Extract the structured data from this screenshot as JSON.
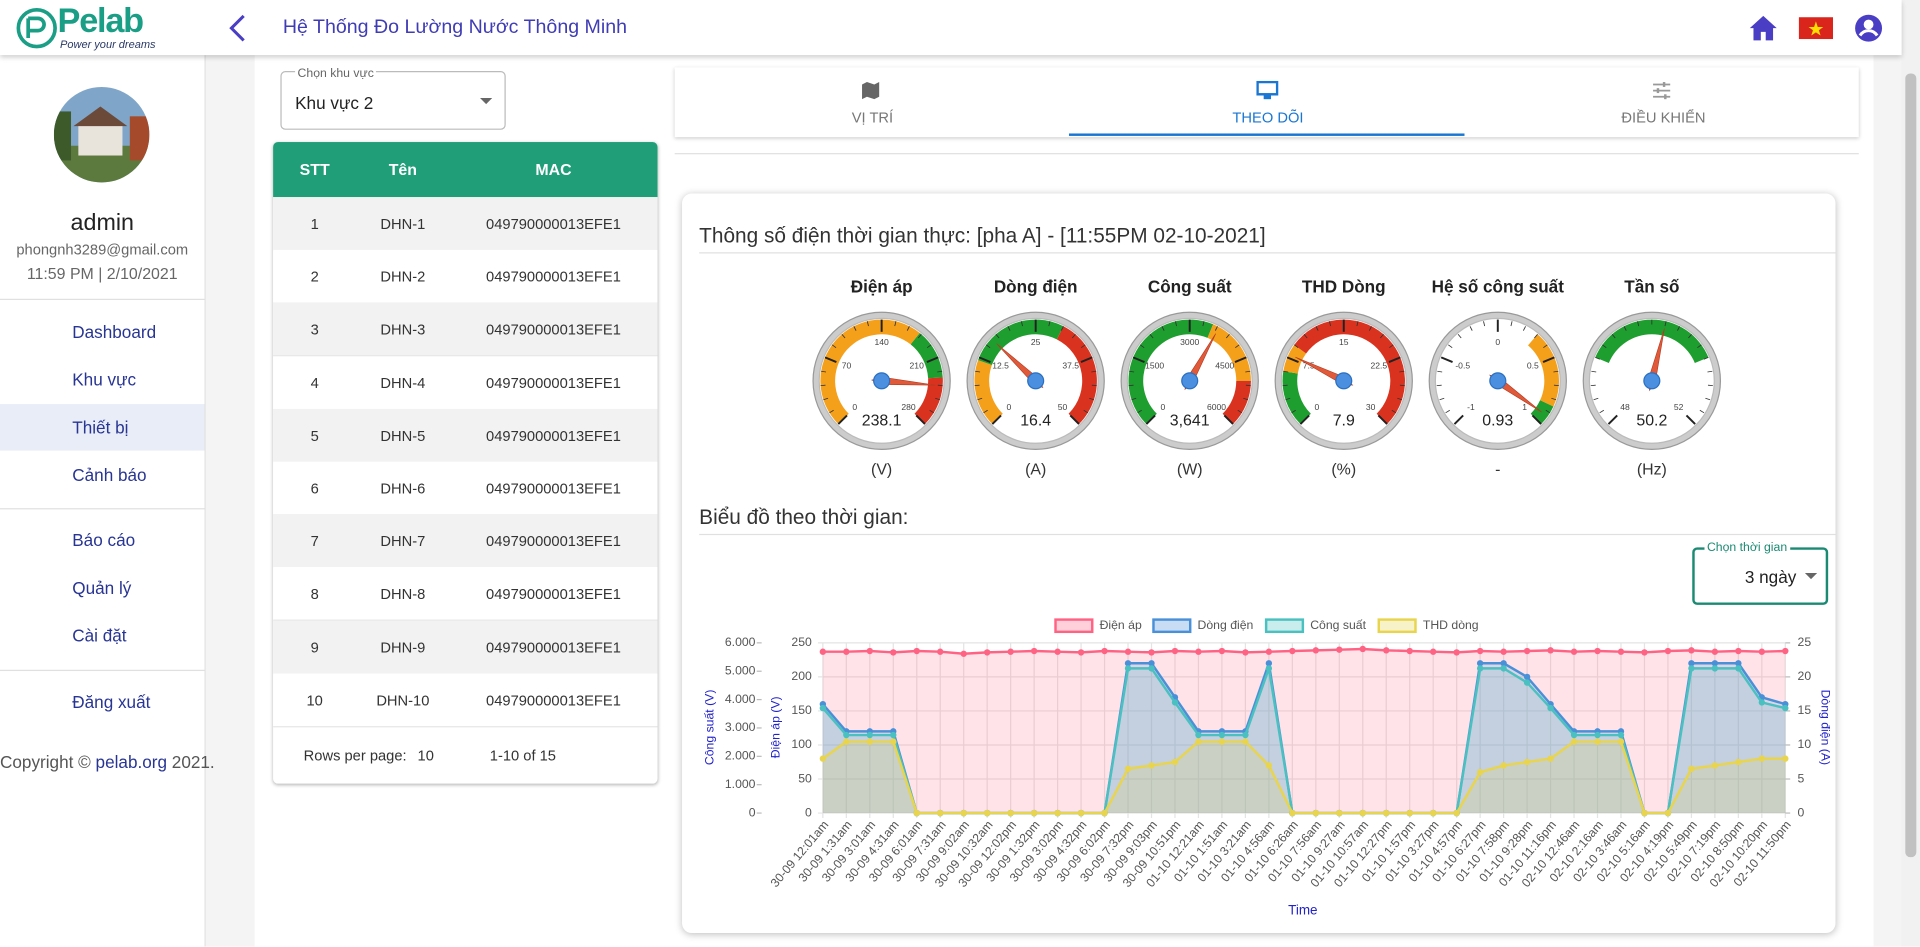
{
  "header": {
    "logo_title": "Pelab",
    "logo_tagline": "Power your dreams",
    "app_title": "Hệ Thống Đo Lường Nước Thông Minh"
  },
  "sidebar": {
    "user": {
      "name": "admin",
      "email": "phongnh3289@gmail.com",
      "datetime": "11:59 PM | 2/10/2021"
    },
    "menu": [
      "Dashboard",
      "Khu vực",
      "Thiết bị",
      "Cảnh báo",
      "Báo cáo",
      "Quản lý",
      "Cài đặt",
      "Đăng xuất"
    ],
    "active": 2,
    "copyright_prefix": "Copyright ©",
    "copyright_link": "pelab.org",
    "copyright_suffix": "2021."
  },
  "area_select": {
    "label": "Chọn khu vực",
    "value": "Khu vực 2"
  },
  "table": {
    "columns": [
      "STT",
      "Tên",
      "MAC"
    ],
    "rows": [
      [
        1,
        "DHN-1",
        "049790000013EFE1"
      ],
      [
        2,
        "DHN-2",
        "049790000013EFE1"
      ],
      [
        3,
        "DHN-3",
        "049790000013EFE1"
      ],
      [
        4,
        "DHN-4",
        "049790000013EFE1"
      ],
      [
        5,
        "DHN-5",
        "049790000013EFE1"
      ],
      [
        6,
        "DHN-6",
        "049790000013EFE1"
      ],
      [
        7,
        "DHN-7",
        "049790000013EFE1"
      ],
      [
        8,
        "DHN-8",
        "049790000013EFE1"
      ],
      [
        9,
        "DHN-9",
        "049790000013EFE1"
      ],
      [
        10,
        "DHN-10",
        "049790000013EFE1"
      ]
    ]
  },
  "pagination": {
    "rows_per_page_label": "Rows per page:",
    "rows_per_page": 10,
    "range": "1-10 of 15"
  },
  "tabs": {
    "items": [
      "VỊ TRÍ",
      "THEO DÕI",
      "ĐIỀU KHIỂN"
    ],
    "active": 1
  },
  "realtime_title": "Thông số điện thời gian thực: [pha A] - [11:55PM 02-10-2021]",
  "gauges": [
    {
      "label": "Điện áp",
      "value": 238.1,
      "unit": "(V)",
      "range": [
        0,
        280
      ],
      "ticks": [
        0,
        70,
        140,
        210,
        280
      ],
      "bands": [
        {
          "from": 0,
          "to": 180,
          "color": "#f5a01a"
        },
        {
          "from": 180,
          "to": 230,
          "color": "#1e9e2e"
        },
        {
          "from": 230,
          "to": 280,
          "color": "#d9331f"
        }
      ]
    },
    {
      "label": "Dòng điện",
      "value": 16.4,
      "unit": "(A)",
      "range": [
        0,
        50
      ],
      "ticks": [
        0,
        12.5,
        25,
        37.5,
        50
      ],
      "bands": [
        {
          "from": 0,
          "to": 12,
          "color": "#f5a01a"
        },
        {
          "from": 12,
          "to": 30,
          "color": "#1e9e2e"
        },
        {
          "from": 30,
          "to": 50,
          "color": "#d9331f"
        }
      ]
    },
    {
      "label": "Công suất",
      "value": 3641,
      "value_label": "3,641",
      "unit": "(W)",
      "range": [
        0,
        6000
      ],
      "ticks": [
        0,
        1500,
        3000,
        4500,
        6000
      ],
      "bands": [
        {
          "from": 0,
          "to": 3500,
          "color": "#1e9e2e"
        },
        {
          "from": 3500,
          "to": 5000,
          "color": "#f5a01a"
        },
        {
          "from": 5000,
          "to": 6000,
          "color": "#d9331f"
        }
      ]
    },
    {
      "label": "THD Dòng",
      "value": 7.9,
      "unit": "(%)",
      "range": [
        0,
        30
      ],
      "ticks": [
        0,
        7.5,
        15,
        22.5,
        30
      ],
      "bands": [
        {
          "from": 0,
          "to": 6,
          "color": "#1e9e2e"
        },
        {
          "from": 6,
          "to": 9,
          "color": "#f5a01a"
        },
        {
          "from": 9,
          "to": 30,
          "color": "#d9331f"
        }
      ]
    },
    {
      "label": "Hệ số công suất",
      "value": 0.93,
      "unit": "-",
      "range": [
        -1,
        1
      ],
      "ticks": [
        -1,
        -0.5,
        0,
        0.5,
        1
      ],
      "bands": [
        {
          "from": 0.3,
          "to": 0.85,
          "color": "#f5a01a"
        },
        {
          "from": 0.85,
          "to": 1,
          "color": "#1e9e2e"
        }
      ]
    },
    {
      "label": "Tần số",
      "value": 50.2,
      "unit": "(Hz)",
      "range": [
        48,
        52
      ],
      "ticks": [
        48,
        52
      ],
      "bands": [
        {
          "from": 49,
          "to": 51,
          "color": "#1e9e2e"
        }
      ]
    }
  ],
  "chart_data": {
    "type": "line",
    "title": "Biểu đồ theo thời gian:",
    "time_select": {
      "label": "Chọn thời gian",
      "value": "3 ngày"
    },
    "xlabel": "Time",
    "ylabel": "Công suất (V)",
    "y2label": "Điện áp (V)",
    "y3label": "Dòng điện (A)",
    "categories": [
      "30-09 12:01am",
      "30-09 1:31am",
      "30-09 3:01am",
      "30-09 4:31am",
      "30-09 6:01am",
      "30-09 7:31am",
      "30-09 9:02am",
      "30-09 10:32am",
      "30-09 12:02pm",
      "30-09 1:32pm",
      "30-09 3:02pm",
      "30-09 4:32pm",
      "30-09 6:02pm",
      "30-09 7:32pm",
      "30-09 9:03pm",
      "30-09 10:51pm",
      "01-10 12:21am",
      "01-10 1:51am",
      "01-10 3:21am",
      "01-10 4:56am",
      "01-10 6:26am",
      "01-10 7:56am",
      "01-10 9:27am",
      "01-10 10:57am",
      "01-10 12:27pm",
      "01-10 1:57pm",
      "01-10 3:27pm",
      "01-10 4:57pm",
      "01-10 6:27pm",
      "01-10 7:58pm",
      "01-10 9:28pm",
      "01-10 11:16pm",
      "02-10 12:46am",
      "02-10 2:16am",
      "02-10 3:46am",
      "02-10 5:16am",
      "02-10 4:19pm",
      "02-10 5:49pm",
      "02-10 7:19pm",
      "02-10 8:50pm",
      "02-10 10:20pm",
      "02-10 11:50pm"
    ],
    "ylim": [
      0,
      6000
    ],
    "yticks": [
      0,
      {
        "value": 1000,
        "label": "1.000"
      },
      {
        "value": 2000,
        "label": "2.000"
      },
      {
        "value": 3000,
        "label": "3.000"
      },
      {
        "value": 4000,
        "label": "4.000"
      },
      {
        "value": 5000,
        "label": "5.000"
      },
      {
        "value": 6000,
        "label": "6.000"
      }
    ],
    "y2lim": [
      0,
      250
    ],
    "y2ticks": [
      0,
      50,
      100,
      150,
      200,
      250
    ],
    "y3lim": [
      0,
      25
    ],
    "y3ticks": [
      0,
      5,
      10,
      15,
      20,
      25
    ],
    "grid": true,
    "series": [
      {
        "name": "Điện áp",
        "color": "#ff6384",
        "axis": "y2",
        "values": [
          237,
          237,
          238,
          236,
          238,
          237,
          234,
          236,
          237,
          238,
          237,
          236,
          238,
          237,
          236,
          238,
          237,
          238,
          236,
          237,
          238,
          239,
          240,
          241,
          239,
          238,
          237,
          236,
          238,
          237,
          238,
          239,
          237,
          238,
          237,
          236,
          238,
          239,
          237,
          238,
          237,
          238
        ]
      },
      {
        "name": "Dòng điện",
        "color": "#4a90d9",
        "axis": "y3",
        "values": [
          16,
          12,
          12,
          12,
          0,
          0,
          0,
          0,
          0,
          0,
          0,
          0,
          0,
          22,
          22,
          17,
          12,
          12,
          12,
          22,
          0,
          0,
          0,
          0,
          0,
          0,
          0,
          0,
          22,
          22,
          20,
          16,
          12,
          12,
          12,
          0,
          0,
          22,
          22,
          22,
          17,
          16
        ]
      },
      {
        "name": "Công suất",
        "color": "#4bc0c0",
        "axis": "y",
        "values": [
          3700,
          2750,
          2750,
          2750,
          0,
          0,
          0,
          0,
          0,
          0,
          0,
          0,
          0,
          5100,
          5100,
          3900,
          2750,
          2750,
          2750,
          5100,
          0,
          0,
          0,
          0,
          0,
          0,
          0,
          0,
          5100,
          5100,
          4600,
          3700,
          2750,
          2750,
          2750,
          0,
          0,
          5100,
          5100,
          5100,
          3900,
          3700
        ]
      },
      {
        "name": "THD dòng",
        "color": "#e8d44d",
        "axis": "y3",
        "values": [
          8,
          10.5,
          10.5,
          10.5,
          0,
          0,
          0,
          0,
          0,
          0,
          0,
          0,
          0,
          6.5,
          7,
          7.5,
          10.5,
          10.5,
          10.5,
          7,
          0,
          0,
          0,
          0,
          0,
          0,
          0,
          0,
          6,
          7,
          7.5,
          8,
          10.5,
          10.5,
          10.5,
          0,
          0,
          6.5,
          7,
          7.5,
          8,
          8
        ]
      }
    ]
  }
}
